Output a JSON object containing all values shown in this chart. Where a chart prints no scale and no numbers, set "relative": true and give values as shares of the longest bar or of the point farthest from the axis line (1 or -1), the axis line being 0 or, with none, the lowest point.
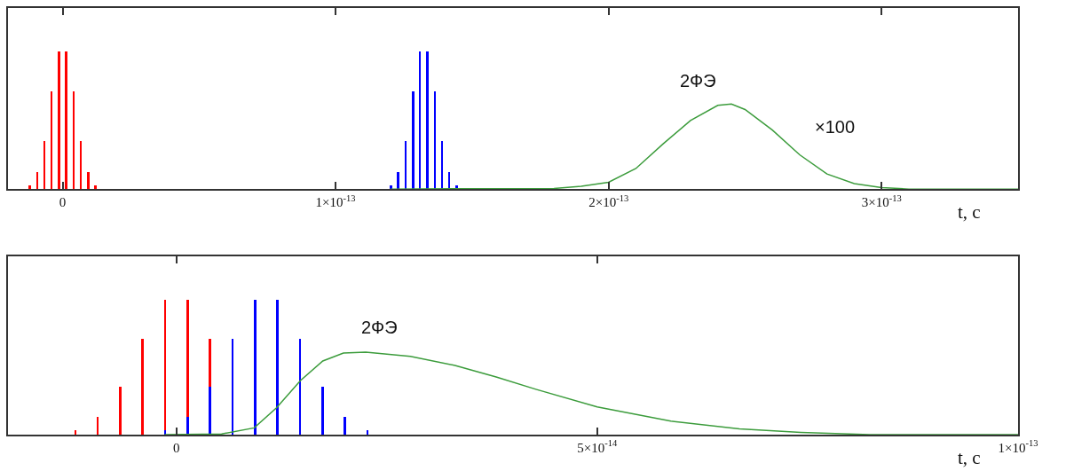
{
  "chart_data": [
    {
      "type": "bar",
      "relative": true,
      "xlabel": "t, с",
      "xlim": [
        -2e-14,
        3.5e-13
      ],
      "xticks": [
        {
          "value": 0,
          "label": "0"
        },
        {
          "value": 1e-13,
          "label": "1×10$^{-13}$"
        },
        {
          "value": 2e-13,
          "label": "2×10$^{-13}$"
        },
        {
          "value": 3e-13,
          "label": "3×10$^{-13}$"
        }
      ],
      "tick_labels": "x",
      "annotations": [
        "2ФЭ",
        "×100"
      ],
      "series": [
        {
          "color": "#ff0000",
          "x": [
            -1.2e-14,
            -9.35e-15,
            -6.68e-15,
            -4e-15,
            -1.34e-15,
            1.34e-15,
            4e-15,
            6.68e-15,
            9.35e-15,
            1.2e-14
          ],
          "values": [
            0.027,
            0.124,
            0.35,
            0.71,
            1,
            1,
            0.71,
            0.35,
            0.124,
            0.027
          ]
        },
        {
          "color": "#0000ff",
          "x": [
            1.203e-13,
            1.229e-13,
            1.257e-13,
            1.284e-13,
            1.309e-13,
            1.336e-13,
            1.364e-13,
            1.39e-13,
            1.416e-13,
            1.443e-13
          ],
          "values": [
            0.027,
            0.124,
            0.35,
            0.71,
            1,
            1,
            0.71,
            0.35,
            0.124,
            0.027
          ]
        },
        {
          "type": "line",
          "color": "#3c9c3c",
          "x": [
            1.2e-13,
            1.8e-13,
            1.9e-13,
            2e-13,
            2.1e-13,
            2.2e-13,
            2.3e-13,
            2.4e-13,
            2.45e-13,
            2.5e-13,
            2.6e-13,
            2.7e-13,
            2.8e-13,
            2.9e-13,
            3e-13,
            3.1e-13,
            3.5e-13
          ],
          "values": [
            0,
            0.005,
            0.02,
            0.05,
            0.15,
            0.33,
            0.5,
            0.61,
            0.62,
            0.58,
            0.43,
            0.25,
            0.11,
            0.04,
            0.01,
            0,
            0
          ]
        }
      ]
    },
    {
      "type": "bar",
      "relative": true,
      "xlabel": "t, с",
      "xlim": [
        -2e-14,
        1e-13
      ],
      "xticks": [
        {
          "value": 0,
          "label": "0"
        },
        {
          "value": 5e-14,
          "label": "5×10$^{-14}$"
        },
        {
          "value": 1e-13,
          "label": "1×10$^{-13}$"
        }
      ],
      "tick_labels": "x",
      "annotations": [
        "2ФЭ"
      ],
      "series": [
        {
          "color": "#ff0000",
          "x": [
            -1.2e-14,
            -9.35e-15,
            -6.68e-15,
            -4e-15,
            -1.34e-15,
            1.34e-15,
            4e-15
          ],
          "values": [
            0.037,
            0.134,
            0.356,
            0.71,
            1,
            1,
            0.71
          ]
        },
        {
          "color": "#0000ff",
          "x": [
            -1.34e-15,
            1.34e-15,
            4e-15,
            6.68e-15,
            9.35e-15,
            1.2e-14,
            1.47e-14,
            1.74e-14,
            2e-14,
            2.27e-14
          ],
          "values": [
            0.037,
            0.134,
            0.356,
            0.71,
            1,
            1,
            0.71,
            0.356,
            0.134,
            0.037
          ]
        },
        {
          "type": "line",
          "color": "#3c9c3c",
          "x": [
            -1.38e-15,
            5.38e-15,
            9.25e-15,
            1.19e-14,
            1.475e-14,
            1.74e-14,
            1.985e-14,
            2.25e-14,
            2.78e-14,
            3.31e-14,
            3.8e-14,
            4.28e-14,
            5e-14,
            5.875e-14,
            6.69e-14,
            7.42e-14,
            8.24e-14,
            1e-13
          ],
          "values": [
            0,
            0.005,
            0.05,
            0.198,
            0.4,
            0.545,
            0.604,
            0.611,
            0.579,
            0.512,
            0.426,
            0.334,
            0.205,
            0.1,
            0.042,
            0.017,
            0,
            0
          ]
        }
      ]
    }
  ]
}
